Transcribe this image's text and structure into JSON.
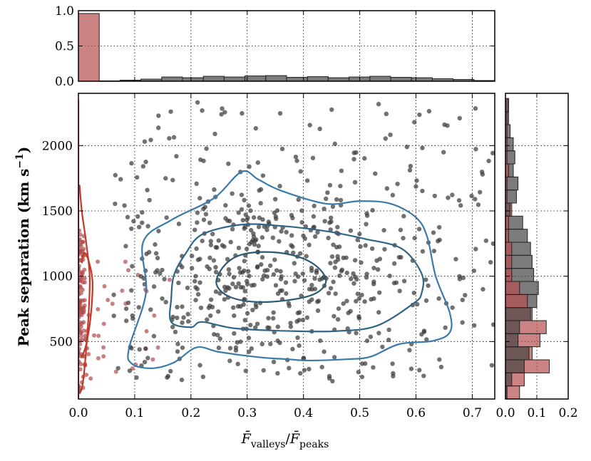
{
  "chart_data": [
    {
      "type": "bar",
      "panel": "top-marginal-histogram",
      "xlim": [
        0,
        0.74
      ],
      "ylim": [
        0,
        1.0
      ],
      "yticks": [
        "0.0",
        "0.5",
        "1.0"
      ],
      "grid": true,
      "series": [
        {
          "color": "#b74e4e",
          "bins": [
            [
              0.0,
              0.037,
              0.96
            ]
          ]
        },
        {
          "color": "#444444",
          "bins": [
            [
              0.037,
              0.074,
              0.005
            ],
            [
              0.074,
              0.111,
              0.015
            ],
            [
              0.111,
              0.148,
              0.03
            ],
            [
              0.148,
              0.185,
              0.06
            ],
            [
              0.185,
              0.222,
              0.05
            ],
            [
              0.222,
              0.259,
              0.07
            ],
            [
              0.259,
              0.296,
              0.06
            ],
            [
              0.296,
              0.333,
              0.075
            ],
            [
              0.333,
              0.37,
              0.08
            ],
            [
              0.37,
              0.407,
              0.055
            ],
            [
              0.407,
              0.444,
              0.065
            ],
            [
              0.444,
              0.481,
              0.05
            ],
            [
              0.481,
              0.518,
              0.06
            ],
            [
              0.518,
              0.555,
              0.07
            ],
            [
              0.555,
              0.592,
              0.055
            ],
            [
              0.592,
              0.629,
              0.05
            ],
            [
              0.629,
              0.666,
              0.035
            ],
            [
              0.666,
              0.703,
              0.025
            ],
            [
              0.703,
              0.74,
              0.01
            ]
          ]
        }
      ]
    },
    {
      "type": "scatter",
      "panel": "main",
      "xlabel": "F̄valleys/F̄peaks",
      "ylabel": "Peak separation (km s−1)",
      "xlim": [
        0,
        0.74
      ],
      "ylim": [
        60,
        2400
      ],
      "xticks": [
        "0.0",
        "0.1",
        "0.2",
        "0.3",
        "0.4",
        "0.5",
        "0.6",
        "0.7"
      ],
      "yticks": [
        "500",
        "1000",
        "1500",
        "2000"
      ],
      "grid": true,
      "series": [
        {
          "color": "#3a3a3a",
          "n_points": 620,
          "distribution": "broad cloud, x 0.05–0.74, y 200–2350, peak near (0.33, 950)"
        },
        {
          "color": "#b24a4a",
          "n_points": 140,
          "distribution": "concentrated at x < 0.03; sparse tail to x 0.25, y 200–1250"
        }
      ],
      "contours": [
        {
          "color": "#2b5a75",
          "points": [
            [
              0.245,
              950
            ],
            [
              0.26,
              1085
            ],
            [
              0.29,
              1165
            ],
            [
              0.34,
              1185
            ],
            [
              0.39,
              1150
            ],
            [
              0.425,
              1070
            ],
            [
              0.44,
              960
            ],
            [
              0.42,
              865
            ],
            [
              0.37,
              815
            ],
            [
              0.31,
              805
            ],
            [
              0.265,
              850
            ],
            [
              0.245,
              950
            ]
          ]
        },
        {
          "color": "#2f6687",
          "points": [
            [
              0.165,
              830
            ],
            [
              0.17,
              1010
            ],
            [
              0.19,
              1170
            ],
            [
              0.22,
              1320
            ],
            [
              0.29,
              1395
            ],
            [
              0.36,
              1385
            ],
            [
              0.44,
              1345
            ],
            [
              0.51,
              1285
            ],
            [
              0.575,
              1210
            ],
            [
              0.61,
              1020
            ],
            [
              0.61,
              870
            ],
            [
              0.595,
              790
            ],
            [
              0.53,
              620
            ],
            [
              0.46,
              580
            ],
            [
              0.38,
              580
            ],
            [
              0.28,
              600
            ],
            [
              0.22,
              650
            ],
            [
              0.2,
              610
            ],
            [
              0.165,
              650
            ],
            [
              0.165,
              830
            ]
          ]
        },
        {
          "color": "#3a7aa9",
          "points": [
            [
              0.09,
              450
            ],
            [
              0.12,
              870
            ],
            [
              0.115,
              1260
            ],
            [
              0.165,
              1430
            ],
            [
              0.24,
              1595
            ],
            [
              0.29,
              1800
            ],
            [
              0.32,
              1740
            ],
            [
              0.36,
              1655
            ],
            [
              0.44,
              1555
            ],
            [
              0.5,
              1575
            ],
            [
              0.555,
              1555
            ],
            [
              0.6,
              1450
            ],
            [
              0.62,
              1300
            ],
            [
              0.635,
              1000
            ],
            [
              0.66,
              720
            ],
            [
              0.66,
              570
            ],
            [
              0.63,
              505
            ],
            [
              0.57,
              480
            ],
            [
              0.52,
              385
            ],
            [
              0.48,
              365
            ],
            [
              0.41,
              355
            ],
            [
              0.37,
              365
            ],
            [
              0.32,
              380
            ],
            [
              0.25,
              420
            ],
            [
              0.21,
              455
            ],
            [
              0.17,
              340
            ],
            [
              0.13,
              295
            ],
            [
              0.095,
              330
            ],
            [
              0.09,
              450
            ]
          ]
        },
        {
          "color": "#c0392b",
          "points": [
            [
              0.002,
              100
            ],
            [
              0.007,
              160
            ],
            [
              0.012,
              350
            ],
            [
              0.018,
              700
            ],
            [
              0.02,
              1000
            ],
            [
              0.014,
              1250
            ],
            [
              0.006,
              1500
            ],
            [
              0.002,
              1700
            ]
          ]
        },
        {
          "color": "#c0392b",
          "points": [
            [
              0.006,
              380
            ],
            [
              0.014,
              480
            ],
            [
              0.022,
              700
            ],
            [
              0.025,
              960
            ],
            [
              0.018,
              1120
            ],
            [
              0.01,
              1180
            ],
            [
              0.006,
              1100
            ]
          ]
        },
        {
          "color": "#c0392b",
          "points": [
            [
              0.0,
              60
            ],
            [
              0.0,
              2350
            ]
          ]
        }
      ]
    },
    {
      "type": "bar",
      "panel": "right-marginal-histogram",
      "orientation": "horizontal",
      "xlim": [
        0,
        0.2
      ],
      "ylim": [
        60,
        2400
      ],
      "xticks": [
        "0.0",
        "0.1",
        "0.2"
      ],
      "grid": true,
      "series": [
        {
          "color": "#b74e4e",
          "bins": [
            [
              60,
              160,
              0.045
            ],
            [
              160,
              260,
              0.06
            ],
            [
              260,
              360,
              0.14
            ],
            [
              360,
              460,
              0.085
            ],
            [
              460,
              560,
              0.11
            ],
            [
              560,
              660,
              0.13
            ],
            [
              660,
              760,
              0.085
            ],
            [
              760,
              860,
              0.07
            ],
            [
              860,
              960,
              0.045
            ],
            [
              960,
              1060,
              0.02
            ],
            [
              1060,
              1160,
              0.02
            ],
            [
              1160,
              1260,
              0.02
            ],
            [
              1260,
              1360,
              0.01
            ],
            [
              1360,
              1460,
              0.01
            ],
            [
              1460,
              1560,
              0.02
            ],
            [
              1560,
              1660,
              0.005
            ],
            [
              1660,
              1760,
              0.005
            ],
            [
              1760,
              1860,
              0.01
            ],
            [
              1860,
              1960,
              0.005
            ],
            [
              1960,
              2060,
              0.005
            ],
            [
              2060,
              2160,
              0.005
            ],
            [
              2160,
              2260,
              0.005
            ],
            [
              2260,
              2360,
              0.01
            ]
          ]
        },
        {
          "color": "#444444",
          "bins": [
            [
              60,
              160,
              0.005
            ],
            [
              160,
              260,
              0.02
            ],
            [
              260,
              360,
              0.06
            ],
            [
              360,
              460,
              0.075
            ],
            [
              460,
              560,
              0.04
            ],
            [
              560,
              660,
              0.045
            ],
            [
              660,
              760,
              0.08
            ],
            [
              760,
              860,
              0.1
            ],
            [
              860,
              960,
              0.105
            ],
            [
              960,
              1060,
              0.09
            ],
            [
              1060,
              1160,
              0.085
            ],
            [
              1160,
              1260,
              0.08
            ],
            [
              1260,
              1360,
              0.07
            ],
            [
              1360,
              1460,
              0.055
            ],
            [
              1460,
              1560,
              0.015
            ],
            [
              1560,
              1660,
              0.035
            ],
            [
              1660,
              1760,
              0.04
            ],
            [
              1760,
              1860,
              0.025
            ],
            [
              1860,
              1960,
              0.03
            ],
            [
              1960,
              2060,
              0.025
            ],
            [
              2060,
              2160,
              0.015
            ],
            [
              2160,
              2260,
              0.01
            ],
            [
              2260,
              2360,
              0.01
            ]
          ]
        }
      ]
    }
  ]
}
